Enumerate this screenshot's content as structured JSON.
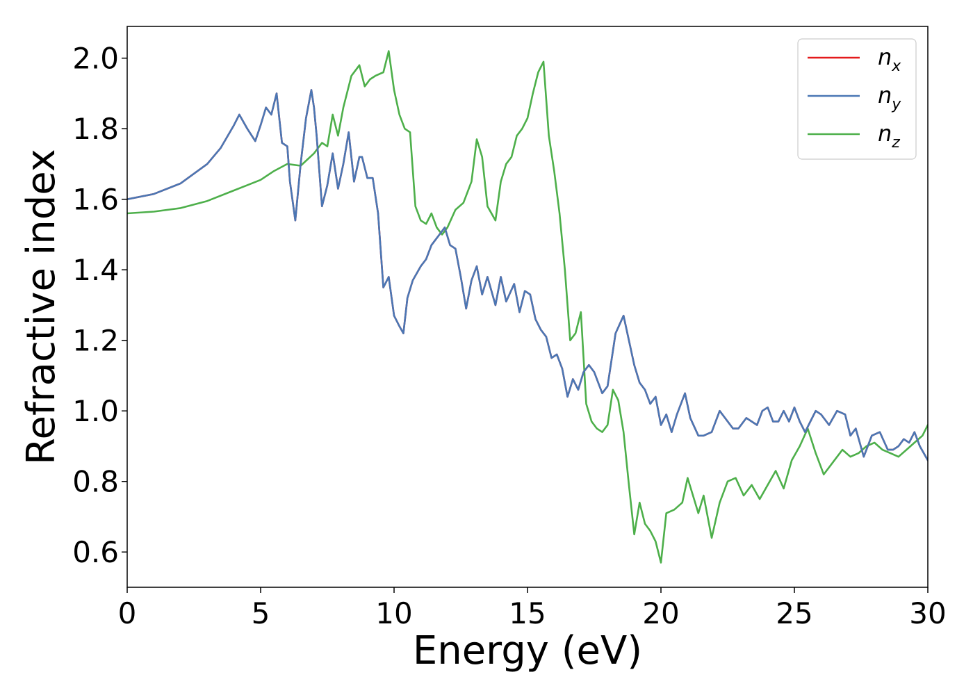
{
  "chart_data": {
    "type": "line",
    "xlabel": "Energy (eV)",
    "ylabel": "Refractive index",
    "xlim": [
      0,
      30
    ],
    "ylim": [
      0.5,
      2.09
    ],
    "xticks": [
      0,
      5,
      10,
      15,
      20,
      25,
      30
    ],
    "xtick_labels": [
      "0",
      "5",
      "10",
      "15",
      "20",
      "25",
      "30"
    ],
    "yticks": [
      0.6,
      0.8,
      1.0,
      1.2,
      1.4,
      1.6,
      1.8,
      2.0
    ],
    "ytick_labels": [
      "0.6",
      "0.8",
      "1.0",
      "1.2",
      "1.4",
      "1.6",
      "1.8",
      "2.0"
    ],
    "grid": false,
    "legend_position": "top-right",
    "series": [
      {
        "name": "n",
        "name_subscript": "x",
        "color": "#e41a1c",
        "x": [
          0,
          1,
          2,
          3,
          3.5,
          4,
          4.2,
          4.5,
          4.8,
          5.0,
          5.2,
          5.4,
          5.6,
          5.8,
          6.0,
          6.1,
          6.3,
          6.5,
          6.7,
          6.9,
          7.0,
          7.1,
          7.3,
          7.5,
          7.7,
          7.9,
          8.1,
          8.3,
          8.5,
          8.7,
          8.8,
          9.0,
          9.2,
          9.4,
          9.6,
          9.8,
          10.0,
          10.2,
          10.35,
          10.5,
          10.7,
          11.0,
          11.2,
          11.4,
          11.7,
          11.9,
          12.1,
          12.3,
          12.5,
          12.7,
          12.9,
          13.1,
          13.3,
          13.5,
          13.8,
          14.0,
          14.2,
          14.5,
          14.7,
          14.9,
          15.1,
          15.3,
          15.5,
          15.7,
          15.9,
          16.1,
          16.3,
          16.5,
          16.7,
          16.9,
          17.1,
          17.3,
          17.5,
          17.8,
          18.0,
          18.3,
          18.6,
          18.8,
          19.0,
          19.2,
          19.4,
          19.6,
          19.8,
          20.0,
          20.2,
          20.4,
          20.6,
          20.9,
          21.1,
          21.4,
          21.6,
          21.9,
          22.2,
          22.4,
          22.7,
          22.9,
          23.2,
          23.4,
          23.6,
          23.8,
          24.0,
          24.2,
          24.4,
          24.6,
          24.8,
          25.0,
          25.2,
          25.4,
          25.6,
          25.8,
          26.0,
          26.3,
          26.6,
          26.9,
          27.1,
          27.3,
          27.6,
          27.9,
          28.2,
          28.5,
          28.7,
          28.9,
          29.1,
          29.3,
          29.5,
          29.7,
          30.0
        ],
        "values": [
          1.6,
          1.615,
          1.645,
          1.7,
          1.745,
          1.81,
          1.84,
          1.8,
          1.765,
          1.81,
          1.86,
          1.84,
          1.9,
          1.76,
          1.75,
          1.65,
          1.54,
          1.7,
          1.83,
          1.91,
          1.86,
          1.78,
          1.58,
          1.64,
          1.73,
          1.63,
          1.7,
          1.79,
          1.65,
          1.72,
          1.72,
          1.66,
          1.66,
          1.56,
          1.35,
          1.38,
          1.27,
          1.24,
          1.22,
          1.32,
          1.37,
          1.41,
          1.43,
          1.47,
          1.5,
          1.52,
          1.47,
          1.46,
          1.38,
          1.29,
          1.37,
          1.41,
          1.33,
          1.38,
          1.3,
          1.38,
          1.31,
          1.36,
          1.28,
          1.34,
          1.33,
          1.26,
          1.23,
          1.21,
          1.15,
          1.16,
          1.12,
          1.04,
          1.09,
          1.06,
          1.11,
          1.13,
          1.11,
          1.05,
          1.07,
          1.22,
          1.27,
          1.2,
          1.13,
          1.08,
          1.06,
          1.02,
          1.04,
          0.96,
          0.99,
          0.94,
          0.99,
          1.05,
          0.98,
          0.93,
          0.93,
          0.94,
          1.0,
          0.98,
          0.95,
          0.95,
          0.98,
          0.97,
          0.96,
          1.0,
          1.01,
          0.97,
          0.97,
          1.0,
          0.97,
          1.01,
          0.97,
          0.94,
          0.97,
          1.0,
          0.99,
          0.96,
          1.0,
          0.99,
          0.93,
          0.95,
          0.87,
          0.93,
          0.94,
          0.89,
          0.89,
          0.9,
          0.92,
          0.91,
          0.94,
          0.9,
          0.86
        ],
        "identical_to": "n_y"
      },
      {
        "name": "n",
        "name_subscript": "y",
        "color": "#4a77b4",
        "x": [
          0,
          1,
          2,
          3,
          3.5,
          4,
          4.2,
          4.5,
          4.8,
          5.0,
          5.2,
          5.4,
          5.6,
          5.8,
          6.0,
          6.1,
          6.3,
          6.5,
          6.7,
          6.9,
          7.0,
          7.1,
          7.3,
          7.5,
          7.7,
          7.9,
          8.1,
          8.3,
          8.5,
          8.7,
          8.8,
          9.0,
          9.2,
          9.4,
          9.6,
          9.8,
          10.0,
          10.2,
          10.35,
          10.5,
          10.7,
          11.0,
          11.2,
          11.4,
          11.7,
          11.9,
          12.1,
          12.3,
          12.5,
          12.7,
          12.9,
          13.1,
          13.3,
          13.5,
          13.8,
          14.0,
          14.2,
          14.5,
          14.7,
          14.9,
          15.1,
          15.3,
          15.5,
          15.7,
          15.9,
          16.1,
          16.3,
          16.5,
          16.7,
          16.9,
          17.1,
          17.3,
          17.5,
          17.8,
          18.0,
          18.3,
          18.6,
          18.8,
          19.0,
          19.2,
          19.4,
          19.6,
          19.8,
          20.0,
          20.2,
          20.4,
          20.6,
          20.9,
          21.1,
          21.4,
          21.6,
          21.9,
          22.2,
          22.4,
          22.7,
          22.9,
          23.2,
          23.4,
          23.6,
          23.8,
          24.0,
          24.2,
          24.4,
          24.6,
          24.8,
          25.0,
          25.2,
          25.4,
          25.6,
          25.8,
          26.0,
          26.3,
          26.6,
          26.9,
          27.1,
          27.3,
          27.6,
          27.9,
          28.2,
          28.5,
          28.7,
          28.9,
          29.1,
          29.3,
          29.5,
          29.7,
          30.0
        ],
        "values": [
          1.6,
          1.615,
          1.645,
          1.7,
          1.745,
          1.81,
          1.84,
          1.8,
          1.765,
          1.81,
          1.86,
          1.84,
          1.9,
          1.76,
          1.75,
          1.65,
          1.54,
          1.7,
          1.83,
          1.91,
          1.86,
          1.78,
          1.58,
          1.64,
          1.73,
          1.63,
          1.7,
          1.79,
          1.65,
          1.72,
          1.72,
          1.66,
          1.66,
          1.56,
          1.35,
          1.38,
          1.27,
          1.24,
          1.22,
          1.32,
          1.37,
          1.41,
          1.43,
          1.47,
          1.5,
          1.52,
          1.47,
          1.46,
          1.38,
          1.29,
          1.37,
          1.41,
          1.33,
          1.38,
          1.3,
          1.38,
          1.31,
          1.36,
          1.28,
          1.34,
          1.33,
          1.26,
          1.23,
          1.21,
          1.15,
          1.16,
          1.12,
          1.04,
          1.09,
          1.06,
          1.11,
          1.13,
          1.11,
          1.05,
          1.07,
          1.22,
          1.27,
          1.2,
          1.13,
          1.08,
          1.06,
          1.02,
          1.04,
          0.96,
          0.99,
          0.94,
          0.99,
          1.05,
          0.98,
          0.93,
          0.93,
          0.94,
          1.0,
          0.98,
          0.95,
          0.95,
          0.98,
          0.97,
          0.96,
          1.0,
          1.01,
          0.97,
          0.97,
          1.0,
          0.97,
          1.01,
          0.97,
          0.94,
          0.97,
          1.0,
          0.99,
          0.96,
          1.0,
          0.99,
          0.93,
          0.95,
          0.87,
          0.93,
          0.94,
          0.89,
          0.89,
          0.9,
          0.92,
          0.91,
          0.94,
          0.9,
          0.86
        ]
      },
      {
        "name": "n",
        "name_subscript": "z",
        "color": "#4daf4a",
        "x": [
          0,
          1,
          2,
          3,
          4,
          4.5,
          5.0,
          5.5,
          6.0,
          6.5,
          7.0,
          7.3,
          7.5,
          7.7,
          7.9,
          8.1,
          8.4,
          8.7,
          8.9,
          9.1,
          9.3,
          9.6,
          9.8,
          10.0,
          10.2,
          10.4,
          10.6,
          10.8,
          11.0,
          11.2,
          11.4,
          11.6,
          11.8,
          12.0,
          12.3,
          12.6,
          12.9,
          13.1,
          13.3,
          13.5,
          13.8,
          14.0,
          14.2,
          14.4,
          14.6,
          14.8,
          15.0,
          15.2,
          15.4,
          15.6,
          15.8,
          16.0,
          16.2,
          16.4,
          16.6,
          16.8,
          17.0,
          17.2,
          17.4,
          17.6,
          17.8,
          18.0,
          18.2,
          18.4,
          18.6,
          18.8,
          19.0,
          19.2,
          19.4,
          19.6,
          19.8,
          20.0,
          20.2,
          20.5,
          20.8,
          21.0,
          21.2,
          21.4,
          21.6,
          21.9,
          22.2,
          22.5,
          22.8,
          23.1,
          23.4,
          23.7,
          24.0,
          24.3,
          24.6,
          24.9,
          25.2,
          25.5,
          25.8,
          26.1,
          26.5,
          26.8,
          27.1,
          27.4,
          27.7,
          28.0,
          28.3,
          28.6,
          28.9,
          29.2,
          29.5,
          29.8,
          30.0
        ],
        "values": [
          1.56,
          1.565,
          1.575,
          1.595,
          1.625,
          1.64,
          1.655,
          1.68,
          1.7,
          1.695,
          1.73,
          1.76,
          1.75,
          1.84,
          1.78,
          1.86,
          1.95,
          1.98,
          1.92,
          1.94,
          1.95,
          1.96,
          2.02,
          1.91,
          1.84,
          1.8,
          1.79,
          1.58,
          1.54,
          1.53,
          1.56,
          1.52,
          1.5,
          1.52,
          1.57,
          1.59,
          1.65,
          1.77,
          1.72,
          1.58,
          1.54,
          1.65,
          1.7,
          1.72,
          1.78,
          1.8,
          1.83,
          1.9,
          1.96,
          1.99,
          1.78,
          1.68,
          1.56,
          1.4,
          1.2,
          1.22,
          1.28,
          1.02,
          0.97,
          0.95,
          0.94,
          0.96,
          1.06,
          1.03,
          0.94,
          0.79,
          0.65,
          0.74,
          0.68,
          0.66,
          0.63,
          0.57,
          0.71,
          0.72,
          0.74,
          0.81,
          0.76,
          0.71,
          0.76,
          0.64,
          0.74,
          0.8,
          0.81,
          0.76,
          0.79,
          0.75,
          0.79,
          0.83,
          0.78,
          0.86,
          0.9,
          0.95,
          0.88,
          0.82,
          0.86,
          0.89,
          0.87,
          0.88,
          0.9,
          0.91,
          0.89,
          0.88,
          0.87,
          0.89,
          0.91,
          0.93,
          0.96
        ]
      }
    ]
  }
}
